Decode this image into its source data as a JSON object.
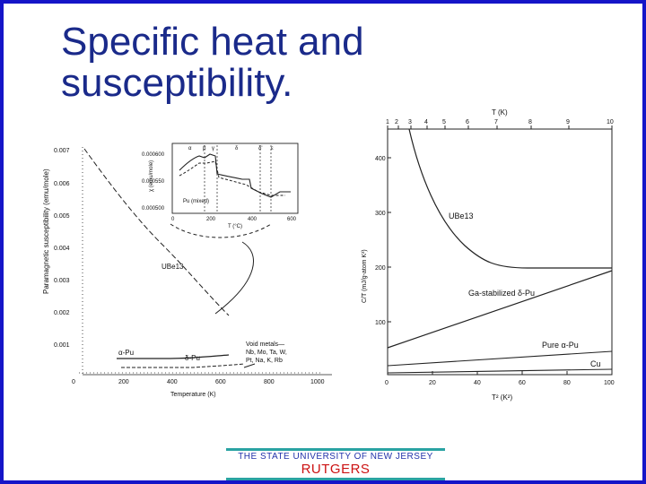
{
  "slide": {
    "title_line1": "Specific heat and",
    "title_line2": "susceptibility.",
    "colors": {
      "frame": "#1515c8",
      "title": "#1a2a8a",
      "footer_rule": "#2aa3a3",
      "footer_text": "#2233aa",
      "brand": "#cc1111"
    }
  },
  "footer": {
    "university": "THE STATE UNIVERSITY OF NEW JERSEY",
    "brand": "RUTGERS"
  },
  "left_plot": {
    "ylabel": "Paramagnetic susceptibility (emu/mole)",
    "xlabel": "Temperature (K)",
    "yticks": [
      "0.007",
      "0.006",
      "0.005",
      "0.004",
      "0.003",
      "0.002",
      "0.001"
    ],
    "xticks": [
      "0",
      "200",
      "400",
      "600",
      "800",
      "1000"
    ],
    "labels": {
      "ube13": "UBe13",
      "alpha_pu": "α-Pu",
      "delta_pu": "δ-Pu",
      "void_metals_1": "Void metals—",
      "void_metals_2": "Nb, Mo, Ta, W,",
      "void_metals_3": "Pt, Na, K, Rb"
    },
    "inset": {
      "ylabel": "χ (emu/mole)",
      "xlabel": "T (°C)",
      "yticks": [
        "0.000600",
        "0.000550",
        "0.000500"
      ],
      "xticks": [
        "0",
        "200",
        "400",
        "600"
      ],
      "label": "Pu (mixed)",
      "phase_labels": [
        "α",
        "β",
        "γ",
        "δ",
        "δ'",
        "ε"
      ]
    }
  },
  "right_plot": {
    "top_axis_label": "T (K)",
    "top_ticks": [
      "1",
      "2",
      "3",
      "4",
      "5",
      "6",
      "7",
      "8",
      "9",
      "10"
    ],
    "ylabel": "C/T (mJ/g-atom K²)",
    "yticks": [
      "400",
      "300",
      "200",
      "100"
    ],
    "xlabel": "T² (K²)",
    "xticks": [
      "0",
      "20",
      "40",
      "60",
      "80",
      "100"
    ],
    "labels": {
      "ube13": "UBe13",
      "ga_delta": "Ga-stabilized δ-Pu",
      "pure_alpha": "Pure α-Pu",
      "cu": "Cu"
    }
  }
}
